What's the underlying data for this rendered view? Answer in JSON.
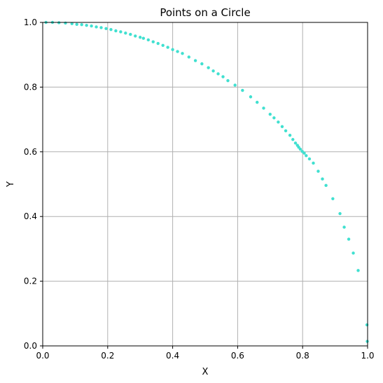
{
  "chart_data": {
    "type": "scatter",
    "title": "Points on a Circle",
    "xlabel": "X",
    "ylabel": "Y",
    "xlim": [
      0,
      1
    ],
    "ylim": [
      0,
      1
    ],
    "x_ticks": [
      "0.0",
      "0.2",
      "0.4",
      "0.6",
      "0.8",
      "1.0"
    ],
    "y_ticks": [
      "0.0",
      "0.2",
      "0.4",
      "0.6",
      "0.8",
      "1.0"
    ],
    "grid": true,
    "marker_color": "#40e0d0",
    "series": [
      {
        "points": [
          [
            0.999,
            0.014
          ],
          [
            0.998,
            0.065
          ],
          [
            0.971,
            0.233
          ],
          [
            0.956,
            0.287
          ],
          [
            0.942,
            0.33
          ],
          [
            0.928,
            0.367
          ],
          [
            0.915,
            0.409
          ],
          [
            0.893,
            0.455
          ],
          [
            0.872,
            0.496
          ],
          [
            0.861,
            0.516
          ],
          [
            0.848,
            0.54
          ],
          [
            0.833,
            0.565
          ],
          [
            0.821,
            0.578
          ],
          [
            0.811,
            0.588
          ],
          [
            0.805,
            0.596
          ],
          [
            0.799,
            0.601
          ],
          [
            0.793,
            0.608
          ],
          [
            0.788,
            0.614
          ],
          [
            0.784,
            0.62
          ],
          [
            0.778,
            0.627
          ],
          [
            0.77,
            0.638
          ],
          [
            0.761,
            0.651
          ],
          [
            0.748,
            0.665
          ],
          [
            0.737,
            0.678
          ],
          [
            0.725,
            0.692
          ],
          [
            0.712,
            0.705
          ],
          [
            0.7,
            0.716
          ],
          [
            0.68,
            0.735
          ],
          [
            0.66,
            0.753
          ],
          [
            0.64,
            0.77
          ],
          [
            0.615,
            0.79
          ],
          [
            0.592,
            0.806
          ],
          [
            0.57,
            0.82
          ],
          [
            0.555,
            0.832
          ],
          [
            0.54,
            0.841
          ],
          [
            0.525,
            0.85
          ],
          [
            0.51,
            0.86
          ],
          [
            0.49,
            0.872
          ],
          [
            0.47,
            0.882
          ],
          [
            0.45,
            0.893
          ],
          [
            0.43,
            0.904
          ],
          [
            0.415,
            0.91
          ],
          [
            0.4,
            0.916
          ],
          [
            0.385,
            0.923
          ],
          [
            0.37,
            0.929
          ],
          [
            0.355,
            0.935
          ],
          [
            0.34,
            0.94
          ],
          [
            0.325,
            0.946
          ],
          [
            0.31,
            0.951
          ],
          [
            0.3,
            0.954
          ],
          [
            0.285,
            0.958
          ],
          [
            0.27,
            0.963
          ],
          [
            0.255,
            0.967
          ],
          [
            0.24,
            0.971
          ],
          [
            0.225,
            0.974
          ],
          [
            0.21,
            0.978
          ],
          [
            0.195,
            0.981
          ],
          [
            0.18,
            0.984
          ],
          [
            0.165,
            0.986
          ],
          [
            0.15,
            0.989
          ],
          [
            0.135,
            0.991
          ],
          [
            0.12,
            0.993
          ],
          [
            0.105,
            0.994
          ],
          [
            0.09,
            0.996
          ],
          [
            0.07,
            0.998
          ],
          [
            0.05,
            0.999
          ],
          [
            0.03,
            1.0
          ],
          [
            0.01,
            1.0
          ]
        ]
      }
    ]
  }
}
